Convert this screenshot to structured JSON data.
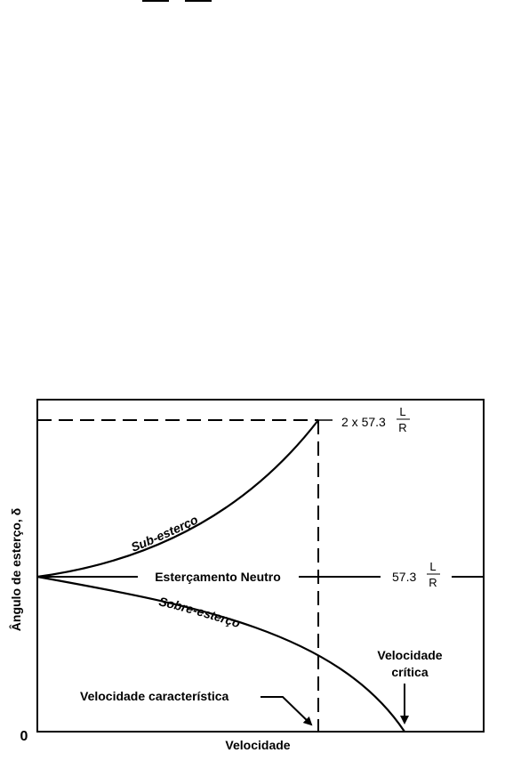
{
  "diagram": {
    "y_axis_label": "Ângulo de esterço, δ",
    "x_axis_label": "Velocidade",
    "origin_label": "0",
    "curve_under": "Sub-esterço",
    "curve_neutral": "Esterçamento Neutro",
    "curve_over": "Sobre-esterço",
    "annotation_char_speed": "Velocidade característica",
    "annotation_crit_speed_line1": "Velocidade",
    "annotation_crit_speed_line2": "crítica",
    "eq_top_prefix": "2 x 57.3",
    "eq_mid_prefix": "57.3",
    "frac_num": "L",
    "frac_den": "R"
  }
}
